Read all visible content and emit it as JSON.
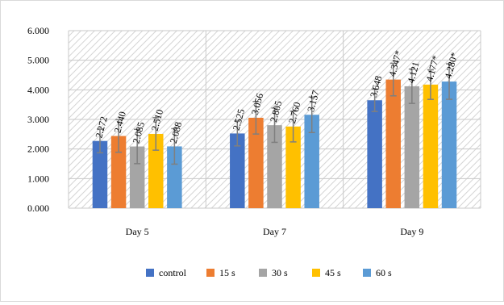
{
  "chart_data": {
    "type": "bar",
    "categories": [
      "Day 5",
      "Day 7",
      "Day 9"
    ],
    "series": [
      {
        "name": "control",
        "color": "#4472C4",
        "values": [
          2.272,
          2.525,
          3.648
        ],
        "errors": [
          0.4,
          0.42,
          0.38
        ],
        "labels": [
          "2.272",
          "2.525",
          "3.648"
        ]
      },
      {
        "name": "15 s",
        "color": "#ED7D31",
        "values": [
          2.44,
          3.056,
          4.347
        ],
        "errors": [
          0.55,
          0.55,
          0.55
        ],
        "labels": [
          "2.440",
          "3.056",
          "4.347*"
        ]
      },
      {
        "name": "30 s",
        "color": "#A5A5A5",
        "values": [
          2.085,
          2.805,
          4.121
        ],
        "errors": [
          0.58,
          0.58,
          0.58
        ],
        "labels": [
          "2.085",
          "2.805",
          "4.121"
        ]
      },
      {
        "name": "45 s",
        "color": "#FFC000",
        "values": [
          2.51,
          2.76,
          4.177
        ],
        "errors": [
          0.55,
          0.52,
          0.5
        ],
        "labels": [
          "2.510",
          "2.760",
          "4.177*"
        ]
      },
      {
        "name": "60 s",
        "color": "#5B9BD5",
        "values": [
          2.088,
          3.157,
          4.28
        ],
        "errors": [
          0.6,
          0.6,
          0.6
        ],
        "labels": [
          "2.088",
          "3.157",
          "4.280*"
        ]
      }
    ],
    "ylim": [
      0,
      6
    ],
    "yticks": [
      "0.000",
      "1.000",
      "2.000",
      "3.000",
      "4.000",
      "5.000",
      "6.000"
    ],
    "title": "",
    "xlabel": "",
    "ylabel": "",
    "grid": true,
    "legend": "bottom"
  }
}
